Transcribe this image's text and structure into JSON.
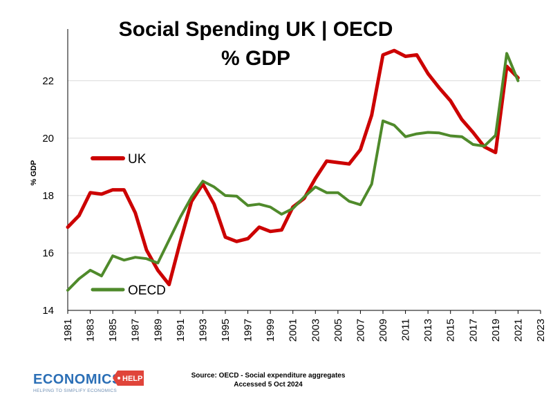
{
  "chart_data": {
    "type": "line",
    "title": "Social Spending UK | OECD",
    "subtitle": "% GDP",
    "xlabel": "",
    "ylabel": "% GDP",
    "ylim": [
      14,
      23.8
    ],
    "yticks": [
      14,
      16,
      18,
      20,
      22
    ],
    "xlim": [
      1981,
      2023
    ],
    "xticks": [
      "1981",
      "1983",
      "1985",
      "1987",
      "1989",
      "1991",
      "1993",
      "1995",
      "1997",
      "1999",
      "2001",
      "2003",
      "2005",
      "2007",
      "2009",
      "2011",
      "2013",
      "2015",
      "2017",
      "2019",
      "2021",
      "2023"
    ],
    "grid": true,
    "x": [
      1981,
      1982,
      1983,
      1984,
      1985,
      1986,
      1987,
      1988,
      1989,
      1990,
      1991,
      1992,
      1993,
      1994,
      1995,
      1996,
      1997,
      1998,
      1999,
      2000,
      2001,
      2002,
      2003,
      2004,
      2005,
      2006,
      2007,
      2008,
      2009,
      2010,
      2011,
      2012,
      2013,
      2014,
      2015,
      2016,
      2017,
      2018,
      2019,
      2020,
      2021
    ],
    "series": [
      {
        "name": "UK",
        "color": "#cc0000",
        "values": [
          16.9,
          17.3,
          18.1,
          18.05,
          18.2,
          18.2,
          17.4,
          16.1,
          15.4,
          14.9,
          16.4,
          17.8,
          18.4,
          17.7,
          16.55,
          16.4,
          16.5,
          16.9,
          16.75,
          16.8,
          17.6,
          17.9,
          18.6,
          19.2,
          19.15,
          19.1,
          19.6,
          20.8,
          22.9,
          23.05,
          22.85,
          22.9,
          22.25,
          21.75,
          21.3,
          20.65,
          20.2,
          19.7,
          19.5,
          22.5,
          22.1
        ]
      },
      {
        "name": "OECD",
        "color": "#4f8a2b",
        "values": [
          14.7,
          15.1,
          15.4,
          15.2,
          15.9,
          15.75,
          15.85,
          15.8,
          15.65,
          16.45,
          17.25,
          17.95,
          18.5,
          18.3,
          18.0,
          17.98,
          17.65,
          17.7,
          17.6,
          17.35,
          17.55,
          17.95,
          18.3,
          18.1,
          18.1,
          17.8,
          17.68,
          18.4,
          20.6,
          20.45,
          20.05,
          20.15,
          20.2,
          20.18,
          20.08,
          20.05,
          19.78,
          19.72,
          20.1,
          22.95,
          22.0
        ]
      }
    ],
    "legend": [
      {
        "name": "UK",
        "position": "upper-left"
      },
      {
        "name": "OECD",
        "position": "lower-left"
      }
    ]
  },
  "source": {
    "line1": "Source: OECD - Social expenditure aggregates",
    "line2": "Accessed 5 Oct 2024"
  },
  "logo": {
    "main": "ECONOMICS",
    "badge": "HELP",
    "tagline": "HELPING TO SIMPLIFY ECONOMICS",
    "blue": "#2b6fb6",
    "red": "#e0443a"
  }
}
